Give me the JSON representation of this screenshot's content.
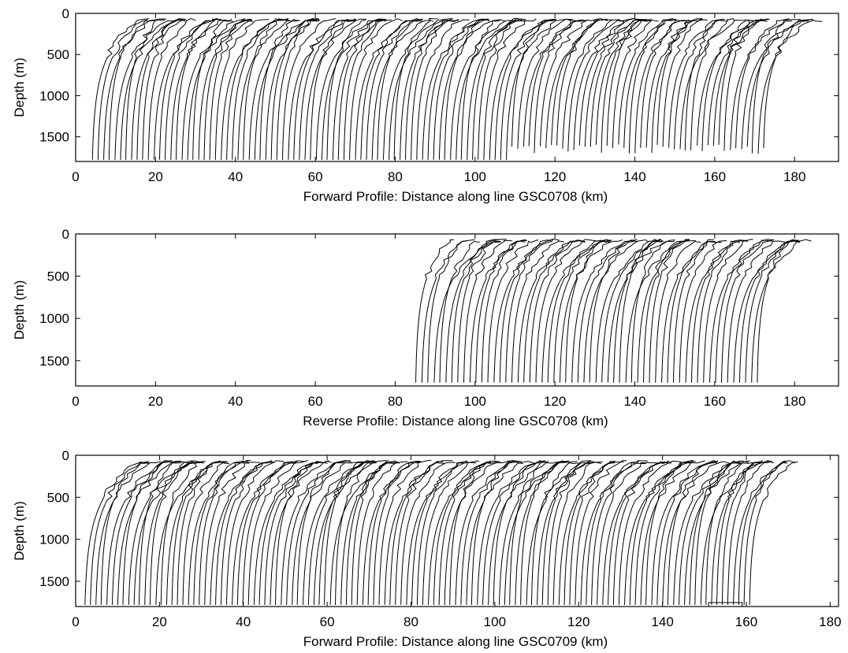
{
  "chart_data": [
    {
      "type": "line",
      "xlabel": "Forward Profile: Distance along line GSC0708 (km)",
      "ylabel": "Depth (m)",
      "xlim": [
        0,
        191
      ],
      "ylim": [
        1800,
        0
      ],
      "y_inverted": true,
      "xticks": [
        0,
        20,
        40,
        60,
        80,
        100,
        120,
        140,
        160,
        180
      ],
      "yticks": [
        0,
        500,
        1000,
        1500
      ],
      "grid": false,
      "traces_summary": {
        "description": "Vertical temperature-depth profile traces offset along distance",
        "x_start_km": 4,
        "x_end_km": 172,
        "trace_spacing_km": 1.4,
        "max_depth_m": 1780,
        "deep_profiles_end_km": 108,
        "shallower_max_depth_after_km": 108,
        "shallower_max_depth_m": 1650
      }
    },
    {
      "type": "line",
      "xlabel": "Reverse Profile: Distance along line GSC0708 (km)",
      "ylabel": "Depth (m)",
      "xlim": [
        0,
        191
      ],
      "ylim": [
        1800,
        0
      ],
      "y_inverted": true,
      "xticks": [
        0,
        20,
        40,
        60,
        80,
        100,
        120,
        140,
        160,
        180
      ],
      "yticks": [
        0,
        500,
        1000,
        1500
      ],
      "grid": false,
      "traces_summary": {
        "description": "Vertical temperature-depth profile traces offset along distance",
        "x_start_km": 85,
        "x_end_km": 170,
        "trace_spacing_km": 1.5,
        "max_depth_m": 1760
      }
    },
    {
      "type": "line",
      "xlabel": "Forward Profile: Distance along line GSC0709 (km)",
      "ylabel": "Depth (m)",
      "xlim": [
        0,
        182
      ],
      "ylim": [
        1800,
        0
      ],
      "y_inverted": true,
      "xticks": [
        0,
        20,
        40,
        60,
        80,
        100,
        120,
        140,
        160,
        180
      ],
      "yticks": [
        0,
        500,
        1000,
        1500
      ],
      "grid": false,
      "traces_summary": {
        "description": "Vertical temperature-depth profile traces offset along distance",
        "x_start_km": 2,
        "x_end_km": 160,
        "trace_spacing_km": 1.3,
        "max_depth_m": 1780,
        "bottom_marker_x_km": [
          151,
          159
        ]
      }
    }
  ]
}
